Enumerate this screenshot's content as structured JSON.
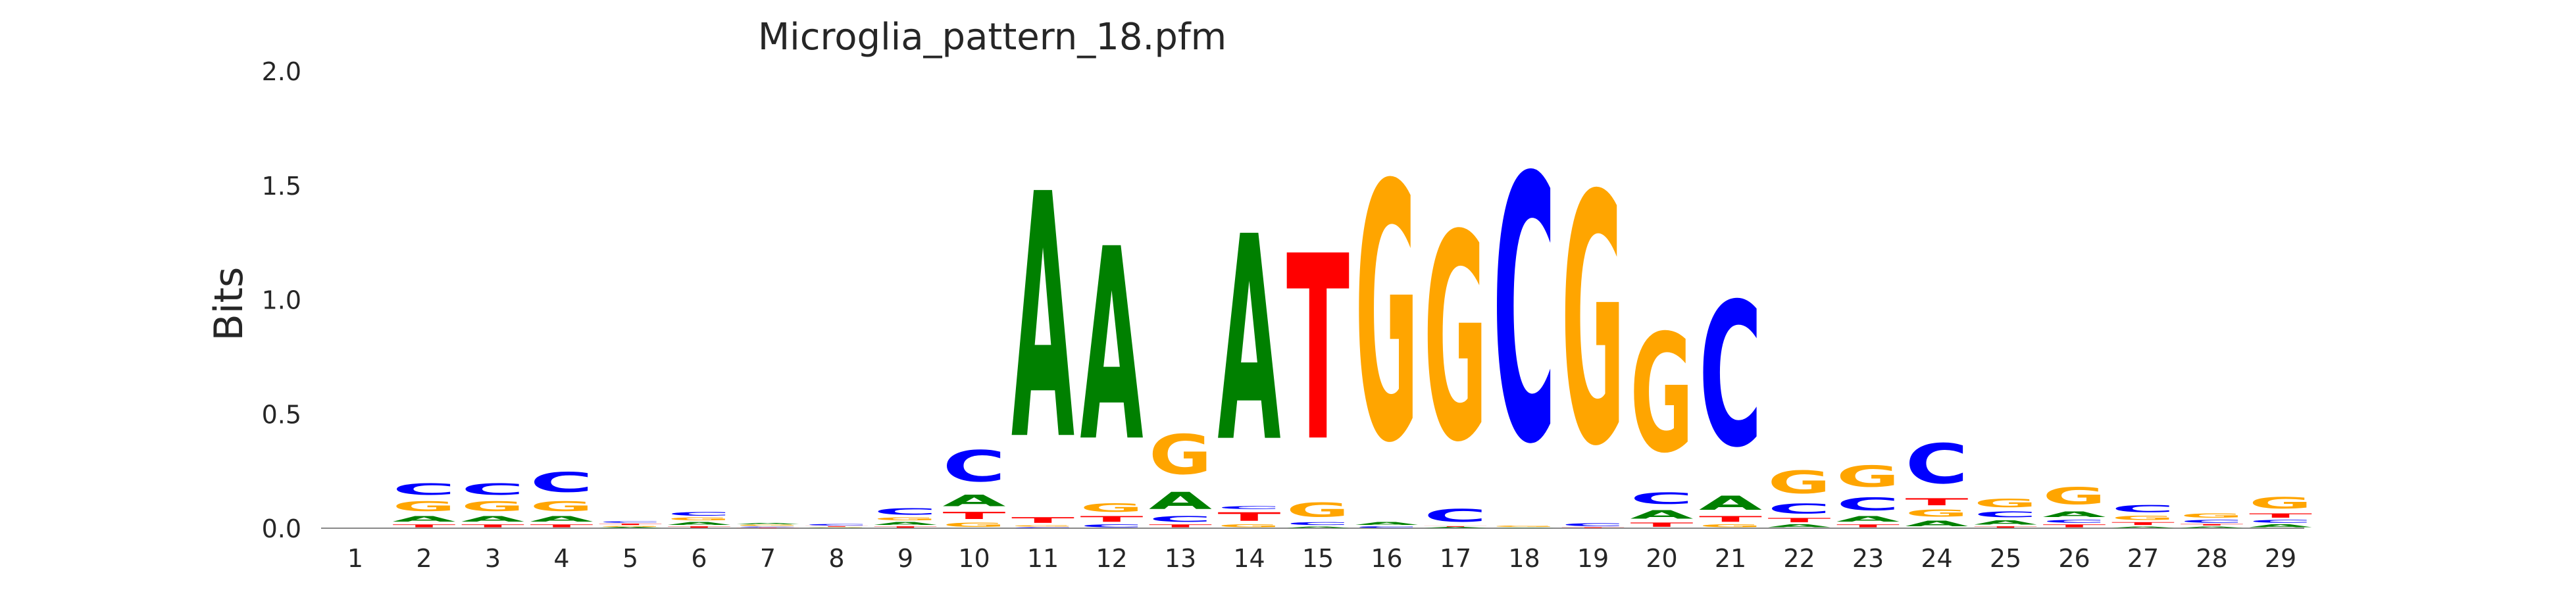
{
  "chart_data": {
    "type": "sequence-logo",
    "title": "Microglia_pattern_18.pfm",
    "xlabel": "",
    "ylabel": "Bits",
    "ylim": [
      0,
      2.0
    ],
    "yticks": [
      "0.0",
      "0.5",
      "1.0",
      "1.5",
      "2.0"
    ],
    "grid": false,
    "legend": "none",
    "colors": {
      "A": "#008000",
      "C": "#0000ff",
      "G": "#ffa500",
      "T": "#ff0000"
    },
    "positions": [
      {
        "pos": "1",
        "letters": []
      },
      {
        "pos": "2",
        "letters": [
          [
            "T",
            0.02
          ],
          [
            "A",
            0.04
          ],
          [
            "G",
            0.07
          ],
          [
            "C",
            0.08
          ]
        ]
      },
      {
        "pos": "3",
        "letters": [
          [
            "T",
            0.02
          ],
          [
            "A",
            0.04
          ],
          [
            "G",
            0.07
          ],
          [
            "C",
            0.08
          ]
        ]
      },
      {
        "pos": "4",
        "letters": [
          [
            "T",
            0.02
          ],
          [
            "A",
            0.04
          ],
          [
            "G",
            0.07
          ],
          [
            "C",
            0.14
          ]
        ]
      },
      {
        "pos": "5",
        "letters": [
          [
            "A",
            0.005
          ],
          [
            "G",
            0.007
          ],
          [
            "T",
            0.01
          ],
          [
            "C",
            0.01
          ]
        ]
      },
      {
        "pos": "6",
        "letters": [
          [
            "T",
            0.01
          ],
          [
            "A",
            0.02
          ],
          [
            "G",
            0.02
          ],
          [
            "C",
            0.025
          ]
        ]
      },
      {
        "pos": "7",
        "letters": [
          [
            "T",
            0.003
          ],
          [
            "C",
            0.005
          ],
          [
            "G",
            0.008
          ],
          [
            "A",
            0.009
          ]
        ]
      },
      {
        "pos": "8",
        "letters": [
          [
            "A",
            0.002
          ],
          [
            "G",
            0.003
          ],
          [
            "T",
            0.005
          ],
          [
            "C",
            0.01
          ]
        ]
      },
      {
        "pos": "9",
        "letters": [
          [
            "T",
            0.01
          ],
          [
            "A",
            0.02
          ],
          [
            "G",
            0.02
          ],
          [
            "C",
            0.045
          ]
        ]
      },
      {
        "pos": "10",
        "letters": [
          [
            "G",
            0.03
          ],
          [
            "T",
            0.05
          ],
          [
            "A",
            0.08
          ],
          [
            "C",
            0.22
          ]
        ]
      },
      {
        "pos": "11",
        "letters": [
          [
            "C",
            0.005
          ],
          [
            "G",
            0.01
          ],
          [
            "T",
            0.04
          ],
          [
            "A",
            1.72
          ]
        ]
      },
      {
        "pos": "12",
        "letters": [
          [
            "C",
            0.02
          ],
          [
            "T",
            0.04
          ],
          [
            "G",
            0.06
          ],
          [
            "A",
            1.35
          ]
        ]
      },
      {
        "pos": "13",
        "letters": [
          [
            "T",
            0.02
          ],
          [
            "C",
            0.04
          ],
          [
            "A",
            0.12
          ],
          [
            "G",
            0.28
          ]
        ]
      },
      {
        "pos": "14",
        "letters": [
          [
            "G",
            0.02
          ],
          [
            "T",
            0.06
          ],
          [
            "C",
            0.02
          ],
          [
            "A",
            1.44
          ]
        ]
      },
      {
        "pos": "15",
        "letters": [
          [
            "A",
            0.01
          ],
          [
            "C",
            0.02
          ],
          [
            "G",
            0.1
          ],
          [
            "T",
            1.3
          ]
        ]
      },
      {
        "pos": "16",
        "letters": [
          [
            "C",
            0.01
          ],
          [
            "A",
            0.02
          ],
          [
            "G",
            1.8
          ]
        ]
      },
      {
        "pos": "17",
        "letters": [
          [
            "A",
            0.005
          ],
          [
            "T",
            0.005
          ],
          [
            "C",
            0.09
          ],
          [
            "G",
            1.45
          ]
        ]
      },
      {
        "pos": "18",
        "letters": [
          [
            "A",
            0.003
          ],
          [
            "G",
            0.01
          ],
          [
            "C",
            1.86
          ]
        ]
      },
      {
        "pos": "19",
        "letters": [
          [
            "T",
            0.005
          ],
          [
            "C",
            0.02
          ],
          [
            "G",
            1.75
          ]
        ]
      },
      {
        "pos": "20",
        "letters": [
          [
            "T",
            0.03
          ],
          [
            "A",
            0.06
          ],
          [
            "C",
            0.08
          ],
          [
            "G",
            0.83
          ]
        ]
      },
      {
        "pos": "21",
        "letters": [
          [
            "G",
            0.02
          ],
          [
            "T",
            0.04
          ],
          [
            "A",
            0.1
          ],
          [
            "C",
            1.01
          ]
        ]
      },
      {
        "pos": "22",
        "letters": [
          [
            "A",
            0.02
          ],
          [
            "T",
            0.03
          ],
          [
            "C",
            0.07
          ],
          [
            "G",
            0.16
          ]
        ]
      },
      {
        "pos": "23",
        "letters": [
          [
            "T",
            0.02
          ],
          [
            "A",
            0.04
          ],
          [
            "C",
            0.09
          ],
          [
            "G",
            0.15
          ]
        ]
      },
      {
        "pos": "24",
        "letters": [
          [
            "A",
            0.04
          ],
          [
            "G",
            0.05
          ],
          [
            "T",
            0.05
          ],
          [
            "C",
            0.28
          ]
        ]
      },
      {
        "pos": "25",
        "letters": [
          [
            "T",
            0.01
          ],
          [
            "A",
            0.03
          ],
          [
            "C",
            0.04
          ],
          [
            "G",
            0.06
          ]
        ]
      },
      {
        "pos": "26",
        "letters": [
          [
            "T",
            0.02
          ],
          [
            "C",
            0.02
          ],
          [
            "A",
            0.04
          ],
          [
            "G",
            0.12
          ]
        ]
      },
      {
        "pos": "27",
        "letters": [
          [
            "A",
            0.01
          ],
          [
            "T",
            0.02
          ],
          [
            "G",
            0.03
          ],
          [
            "C",
            0.05
          ]
        ]
      },
      {
        "pos": "28",
        "letters": [
          [
            "A",
            0.01
          ],
          [
            "T",
            0.01
          ],
          [
            "C",
            0.02
          ],
          [
            "G",
            0.03
          ]
        ]
      },
      {
        "pos": "29",
        "letters": [
          [
            "A",
            0.02
          ],
          [
            "C",
            0.02
          ],
          [
            "T",
            0.03
          ],
          [
            "G",
            0.08
          ]
        ]
      }
    ]
  }
}
